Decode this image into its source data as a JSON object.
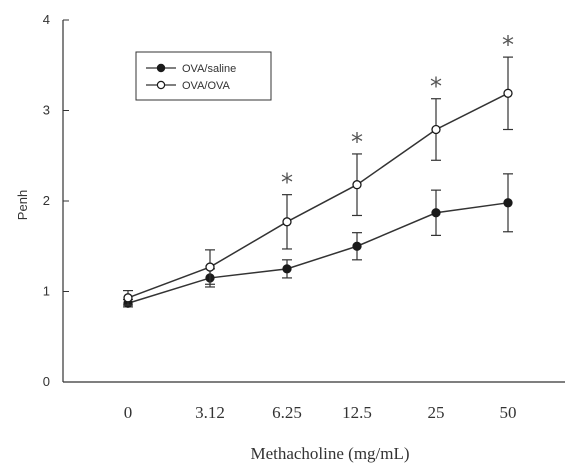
{
  "chart_data": {
    "type": "line",
    "title": "",
    "xlabel": "Methacholine (mg/mL)",
    "ylabel": "Penh",
    "categories": [
      "0",
      "3.12",
      "6.25",
      "12.5",
      "25",
      "50"
    ],
    "ylim": [
      0,
      4
    ],
    "yticks": [
      "0",
      "1",
      "2",
      "3",
      "4"
    ],
    "grid": false,
    "legend_position": "top-left",
    "series": [
      {
        "name": "OVA/saline",
        "marker": "filled-circle",
        "color": "#1a1a1a",
        "values": [
          0.87,
          1.15,
          1.25,
          1.5,
          1.87,
          1.98
        ],
        "errors": [
          0.04,
          0.1,
          0.1,
          0.15,
          0.25,
          0.32
        ]
      },
      {
        "name": "OVA/OVA",
        "marker": "open-circle",
        "color": "#1a1a1a",
        "values": [
          0.93,
          1.27,
          1.77,
          2.18,
          2.79,
          3.19
        ],
        "errors": [
          0.08,
          0.19,
          0.3,
          0.34,
          0.34,
          0.4
        ]
      }
    ],
    "annotations": {
      "symbol": "*",
      "categories": [
        "6.25",
        "12.5",
        "25",
        "50"
      ]
    },
    "colors": {
      "axis": "#333333",
      "line": "#333333",
      "text": "#333333"
    }
  }
}
